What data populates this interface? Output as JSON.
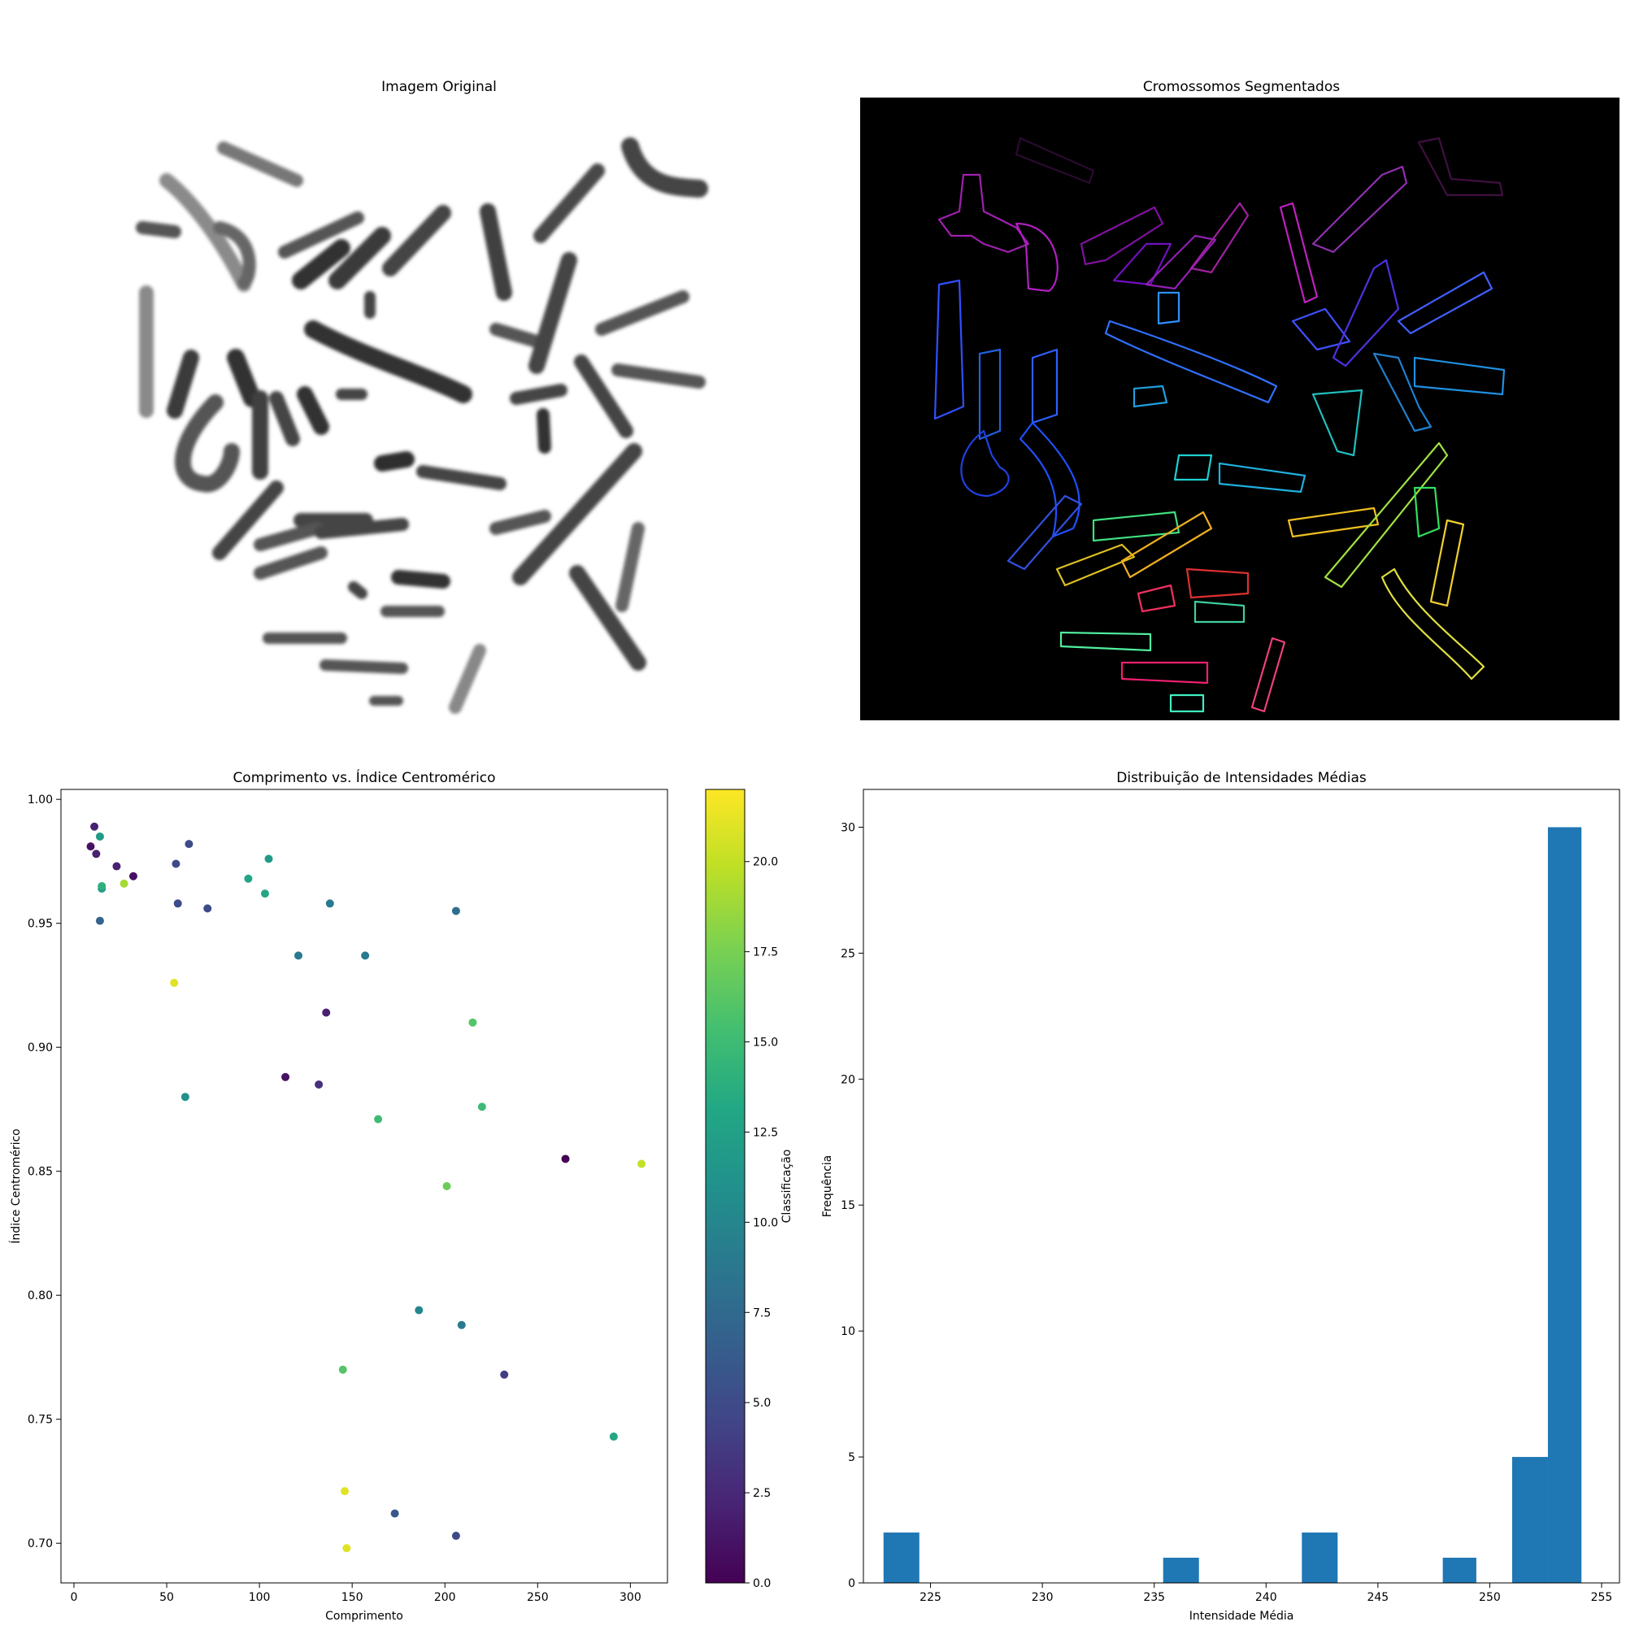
{
  "panels": {
    "original": {
      "title": "Imagem Original"
    },
    "segmented": {
      "title": "Cromossomos Segmentados"
    }
  },
  "chart_data": [
    {
      "type": "scatter",
      "title": "Comprimento vs. Índice Centromérico",
      "xlabel": "Comprimento",
      "ylabel": "Índice Centromérico",
      "xlim": [
        -7,
        320
      ],
      "ylim": [
        0.684,
        1.004
      ],
      "xticks": [
        0,
        50,
        100,
        150,
        200,
        250,
        300
      ],
      "yticks": [
        0.7,
        0.75,
        0.8,
        0.85,
        0.9,
        0.95,
        1.0
      ],
      "grid": false,
      "colorbar": {
        "label": "Classificação",
        "range": [
          0,
          22
        ],
        "ticks": [
          0.0,
          2.5,
          5.0,
          7.5,
          10.0,
          12.5,
          15.0,
          17.5,
          20.0
        ],
        "colormap": "viridis"
      },
      "points": [
        {
          "x": 9,
          "y": 0.981,
          "c": 1
        },
        {
          "x": 11,
          "y": 0.989,
          "c": 2
        },
        {
          "x": 12,
          "y": 0.978,
          "c": 2
        },
        {
          "x": 14,
          "y": 0.985,
          "c": 12
        },
        {
          "x": 14,
          "y": 0.951,
          "c": 7
        },
        {
          "x": 15,
          "y": 0.964,
          "c": 12
        },
        {
          "x": 15,
          "y": 0.965,
          "c": 14
        },
        {
          "x": 23,
          "y": 0.973,
          "c": 2
        },
        {
          "x": 27,
          "y": 0.966,
          "c": 19
        },
        {
          "x": 32,
          "y": 0.969,
          "c": 1
        },
        {
          "x": 54,
          "y": 0.926,
          "c": 21
        },
        {
          "x": 55,
          "y": 0.974,
          "c": 5
        },
        {
          "x": 56,
          "y": 0.958,
          "c": 5
        },
        {
          "x": 60,
          "y": 0.88,
          "c": 11
        },
        {
          "x": 62,
          "y": 0.982,
          "c": 5
        },
        {
          "x": 72,
          "y": 0.956,
          "c": 5
        },
        {
          "x": 94,
          "y": 0.968,
          "c": 13
        },
        {
          "x": 103,
          "y": 0.962,
          "c": 13
        },
        {
          "x": 105,
          "y": 0.976,
          "c": 12
        },
        {
          "x": 114,
          "y": 0.888,
          "c": 1
        },
        {
          "x": 121,
          "y": 0.937,
          "c": 9
        },
        {
          "x": 132,
          "y": 0.885,
          "c": 3
        },
        {
          "x": 136,
          "y": 0.914,
          "c": 2
        },
        {
          "x": 138,
          "y": 0.958,
          "c": 9
        },
        {
          "x": 145,
          "y": 0.77,
          "c": 16
        },
        {
          "x": 146,
          "y": 0.721,
          "c": 21
        },
        {
          "x": 147,
          "y": 0.698,
          "c": 21
        },
        {
          "x": 157,
          "y": 0.937,
          "c": 9
        },
        {
          "x": 164,
          "y": 0.871,
          "c": 15
        },
        {
          "x": 173,
          "y": 0.712,
          "c": 6
        },
        {
          "x": 186,
          "y": 0.794,
          "c": 10
        },
        {
          "x": 201,
          "y": 0.844,
          "c": 17
        },
        {
          "x": 206,
          "y": 0.955,
          "c": 8
        },
        {
          "x": 206,
          "y": 0.703,
          "c": 5
        },
        {
          "x": 209,
          "y": 0.788,
          "c": 9
        },
        {
          "x": 215,
          "y": 0.91,
          "c": 16
        },
        {
          "x": 220,
          "y": 0.876,
          "c": 15
        },
        {
          "x": 232,
          "y": 0.768,
          "c": 4
        },
        {
          "x": 265,
          "y": 0.855,
          "c": 0
        },
        {
          "x": 291,
          "y": 0.743,
          "c": 13
        },
        {
          "x": 306,
          "y": 0.853,
          "c": 20
        }
      ]
    },
    {
      "type": "bar",
      "title": "Distribuição de Intensidades Médias",
      "xlabel": "Intensidade Média",
      "ylabel": "Frequência",
      "xlim": [
        222,
        255.8
      ],
      "ylim": [
        0,
        31.5
      ],
      "xticks": [
        225,
        230,
        235,
        240,
        245,
        250,
        255
      ],
      "yticks": [
        0,
        5,
        10,
        15,
        20,
        25,
        30
      ],
      "bar_color": "#1f77b4",
      "bins": [
        {
          "start": 222.9,
          "end": 224.5,
          "count": 2
        },
        {
          "start": 235.4,
          "end": 237.0,
          "count": 1
        },
        {
          "start": 241.6,
          "end": 243.2,
          "count": 2
        },
        {
          "start": 247.9,
          "end": 249.4,
          "count": 1
        },
        {
          "start": 251.0,
          "end": 252.6,
          "count": 5
        },
        {
          "start": 252.6,
          "end": 254.1,
          "count": 30
        }
      ]
    }
  ]
}
